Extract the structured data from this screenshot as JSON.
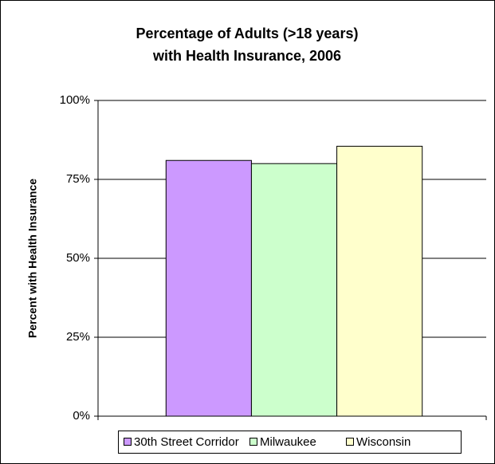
{
  "chart_data": {
    "type": "bar",
    "title": [
      "Percentage of Adults (>18 years)",
      "with Health Insurance, 2006"
    ],
    "y_label": "Percent with Health Insurance",
    "categories": [
      null
    ],
    "series": [
      {
        "name": "30th Street Corridor",
        "color": "#cc99ff",
        "values": [
          81
        ]
      },
      {
        "name": "Milwaukee",
        "color": "#ccffcc",
        "values": [
          80
        ]
      },
      {
        "name": "Wisconsin",
        "color": "#ffffcc",
        "values": [
          85.5
        ]
      }
    ],
    "ylim": [
      0,
      100
    ],
    "yticks": [
      {
        "value": 0,
        "label": "0%"
      },
      {
        "value": 25,
        "label": "25%"
      },
      {
        "value": 50,
        "label": "50%"
      },
      {
        "value": 75,
        "label": "75%"
      },
      {
        "value": 100,
        "label": "100%"
      }
    ],
    "grid": true,
    "legend": "bottom"
  }
}
